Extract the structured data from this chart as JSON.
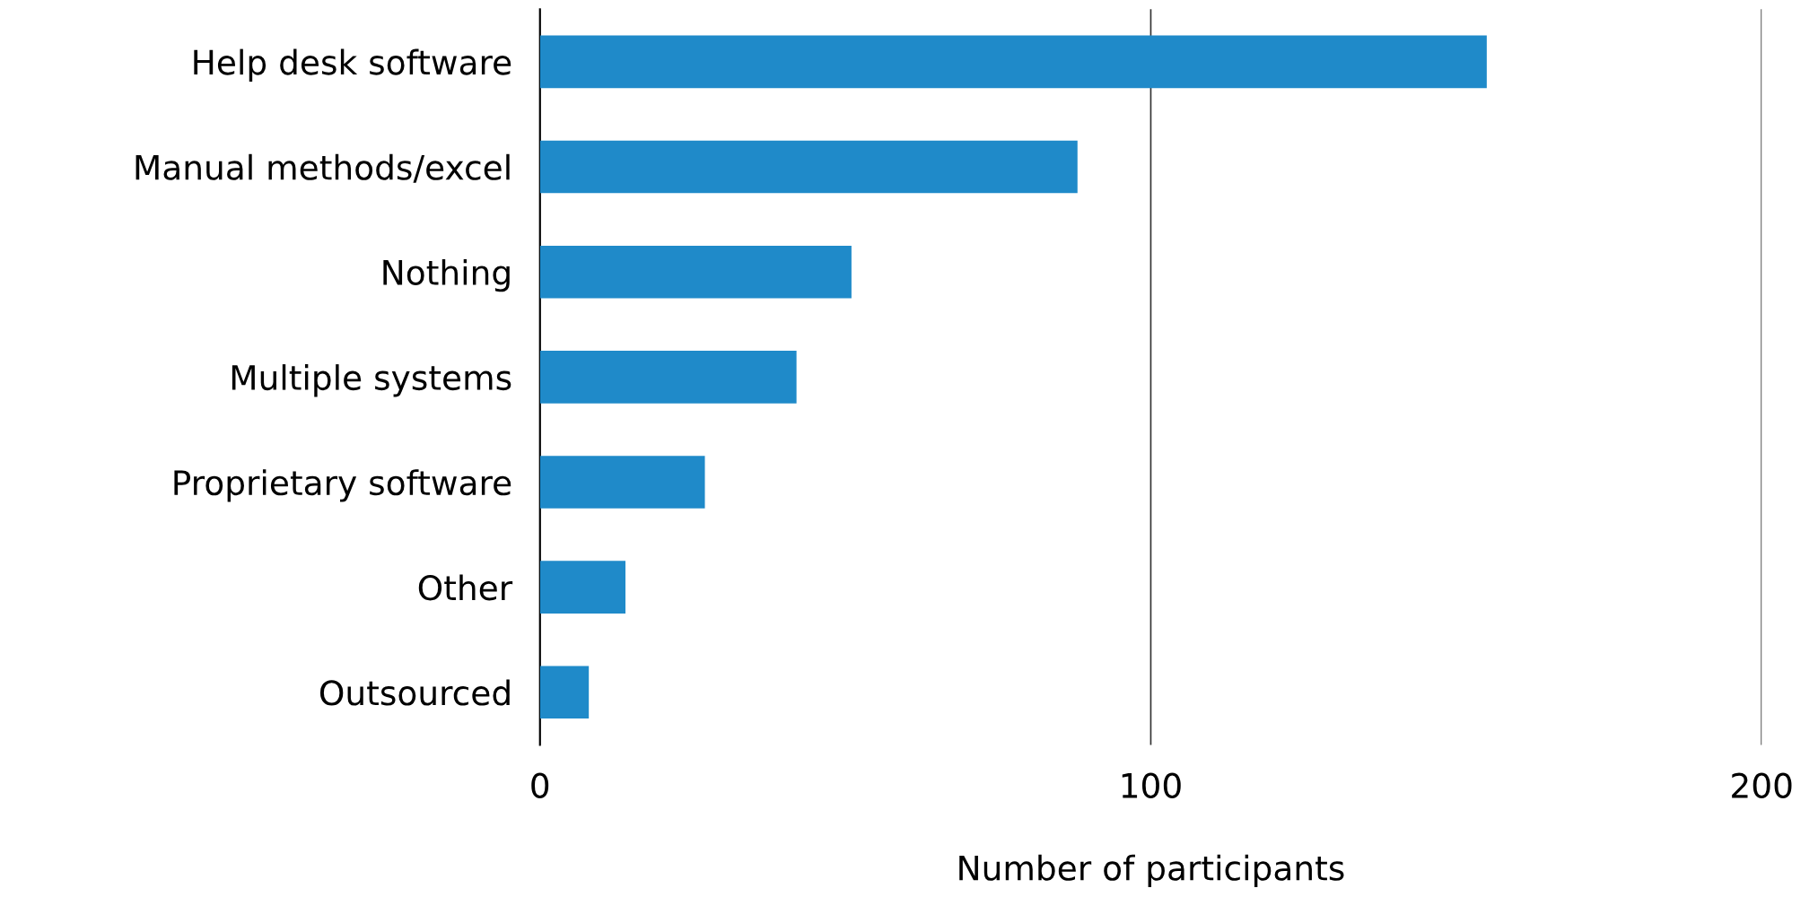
{
  "chart_data": {
    "type": "bar",
    "orientation": "horizontal",
    "xlabel": "Number of participants",
    "categories": [
      "Help desk software",
      "Manual methods/excel",
      "Nothing",
      "Multiple systems",
      "Proprietary software",
      "Other",
      "Outsourced"
    ],
    "values": [
      155,
      88,
      51,
      42,
      27,
      14,
      8
    ],
    "color": "#1f8ac9",
    "xlim": [
      0,
      200
    ],
    "xticks": [
      0,
      100,
      200
    ],
    "grid": "x",
    "legend": false
  }
}
